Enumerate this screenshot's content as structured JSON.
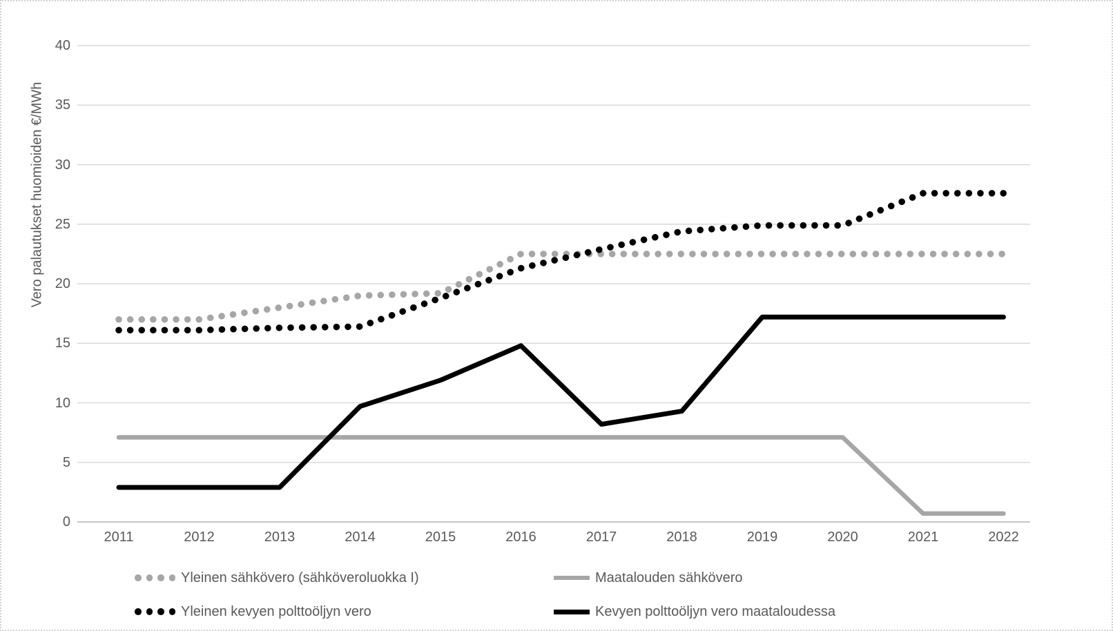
{
  "chart_data": {
    "type": "line",
    "title": "",
    "xlabel": "",
    "ylabel": "Vero palautukset huomioiden €/MWh",
    "ylim": [
      0,
      40
    ],
    "yticks": [
      0,
      5,
      10,
      15,
      20,
      25,
      30,
      35,
      40
    ],
    "categories": [
      "2011",
      "2012",
      "2013",
      "2014",
      "2015",
      "2016",
      "2017",
      "2018",
      "2019",
      "2020",
      "2021",
      "2022"
    ],
    "grid": "horizontal gridlines on",
    "legend_position": "bottom, two columns by two rows",
    "series": [
      {
        "name": "Yleinen sähkövero (sähköveroluokka I)",
        "line_style": "dotted",
        "color": "#a6a6a6",
        "values": [
          17.0,
          17.0,
          18.0,
          19.0,
          19.2,
          22.5,
          22.5,
          22.5,
          22.5,
          22.5,
          22.5,
          22.5
        ]
      },
      {
        "name": "Yleinen kevyen polttoöljyn vero",
        "line_style": "dotted",
        "color": "#000000",
        "values": [
          16.1,
          16.1,
          16.3,
          16.4,
          18.8,
          21.3,
          22.9,
          24.4,
          24.9,
          24.9,
          27.6,
          27.6
        ]
      },
      {
        "name": "Maatalouden sähkövero",
        "line_style": "solid",
        "color": "#a6a6a6",
        "values": [
          7.1,
          7.1,
          7.1,
          7.1,
          7.1,
          7.1,
          7.1,
          7.1,
          7.1,
          7.1,
          0.7,
          0.7
        ]
      },
      {
        "name": "Kevyen polttoöljyn vero maataloudessa",
        "line_style": "solid",
        "color": "#000000",
        "values": [
          2.9,
          2.9,
          2.9,
          9.7,
          11.9,
          14.8,
          8.2,
          9.3,
          17.2,
          17.2,
          17.2,
          17.2
        ]
      }
    ],
    "legend_rows": [
      [
        0,
        2
      ],
      [
        1,
        3
      ]
    ]
  },
  "style": {
    "background": "#ffffff",
    "frame_border_color": "#d0d0d0",
    "gridline_color": "#d9d9d9",
    "baseline_color": "#c6c6c6",
    "axis_text_color": "#595959"
  }
}
